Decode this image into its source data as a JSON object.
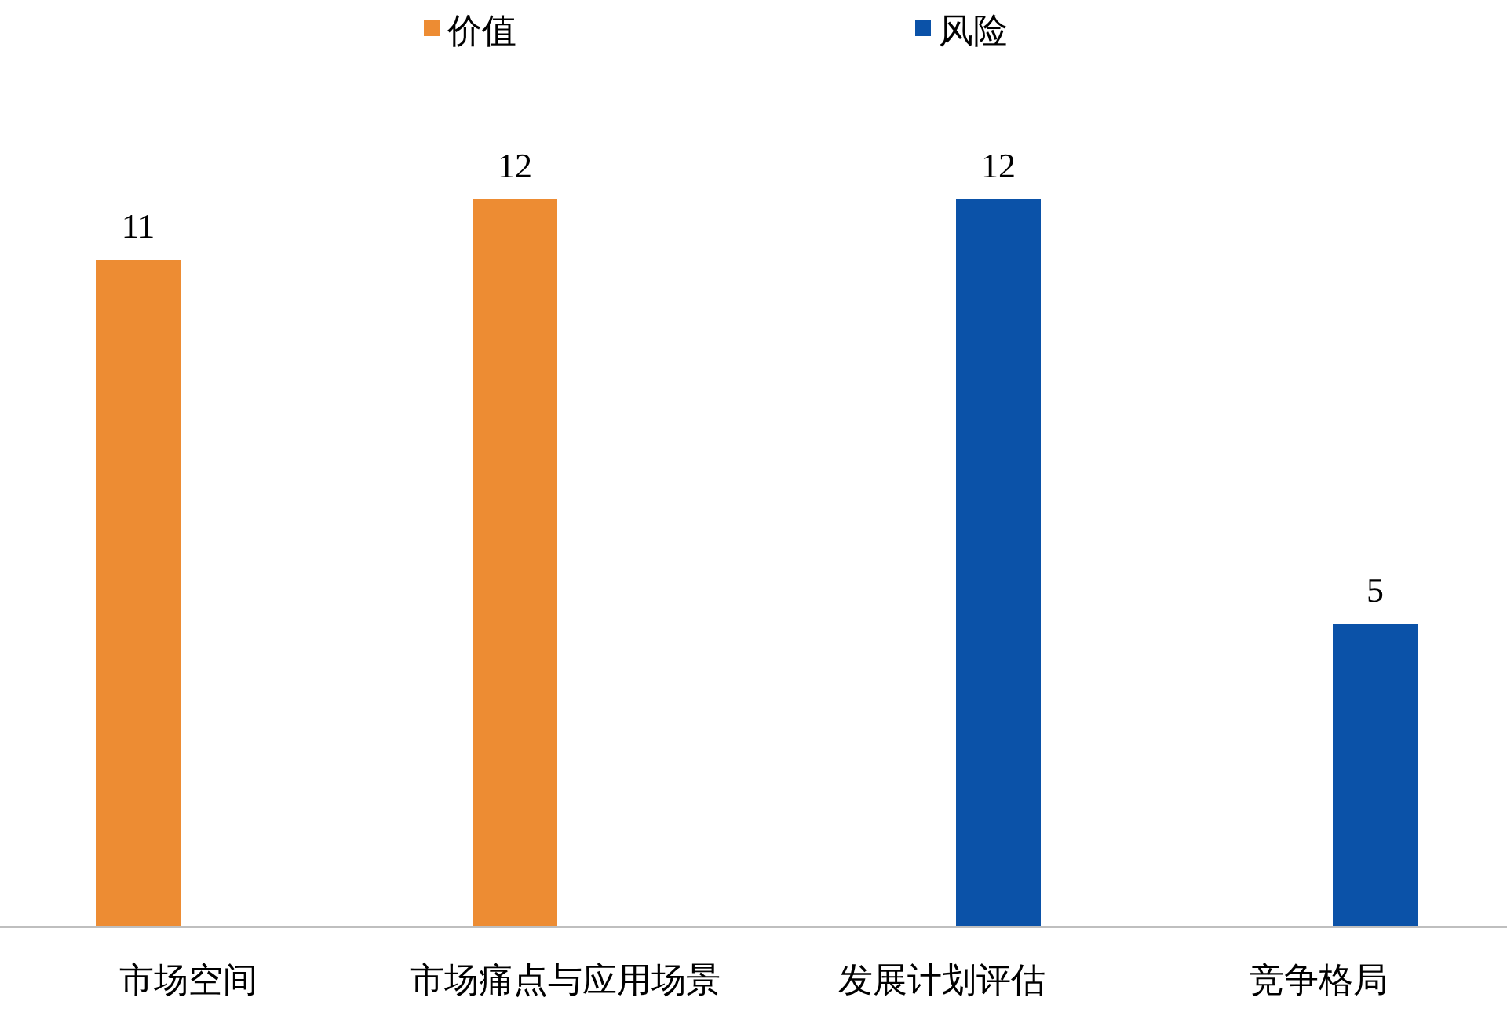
{
  "chart_data": {
    "type": "bar",
    "categories": [
      "市场空间",
      "市场痛点与应用场景",
      "发展计划评估",
      "竞争格局"
    ],
    "series": [
      {
        "name": "价值",
        "color": "#ed8c33",
        "values": [
          11,
          12,
          null,
          null
        ]
      },
      {
        "name": "风险",
        "color": "#0b52a8",
        "values": [
          null,
          null,
          12,
          5
        ]
      }
    ],
    "data_labels": true,
    "legend": "top"
  }
}
